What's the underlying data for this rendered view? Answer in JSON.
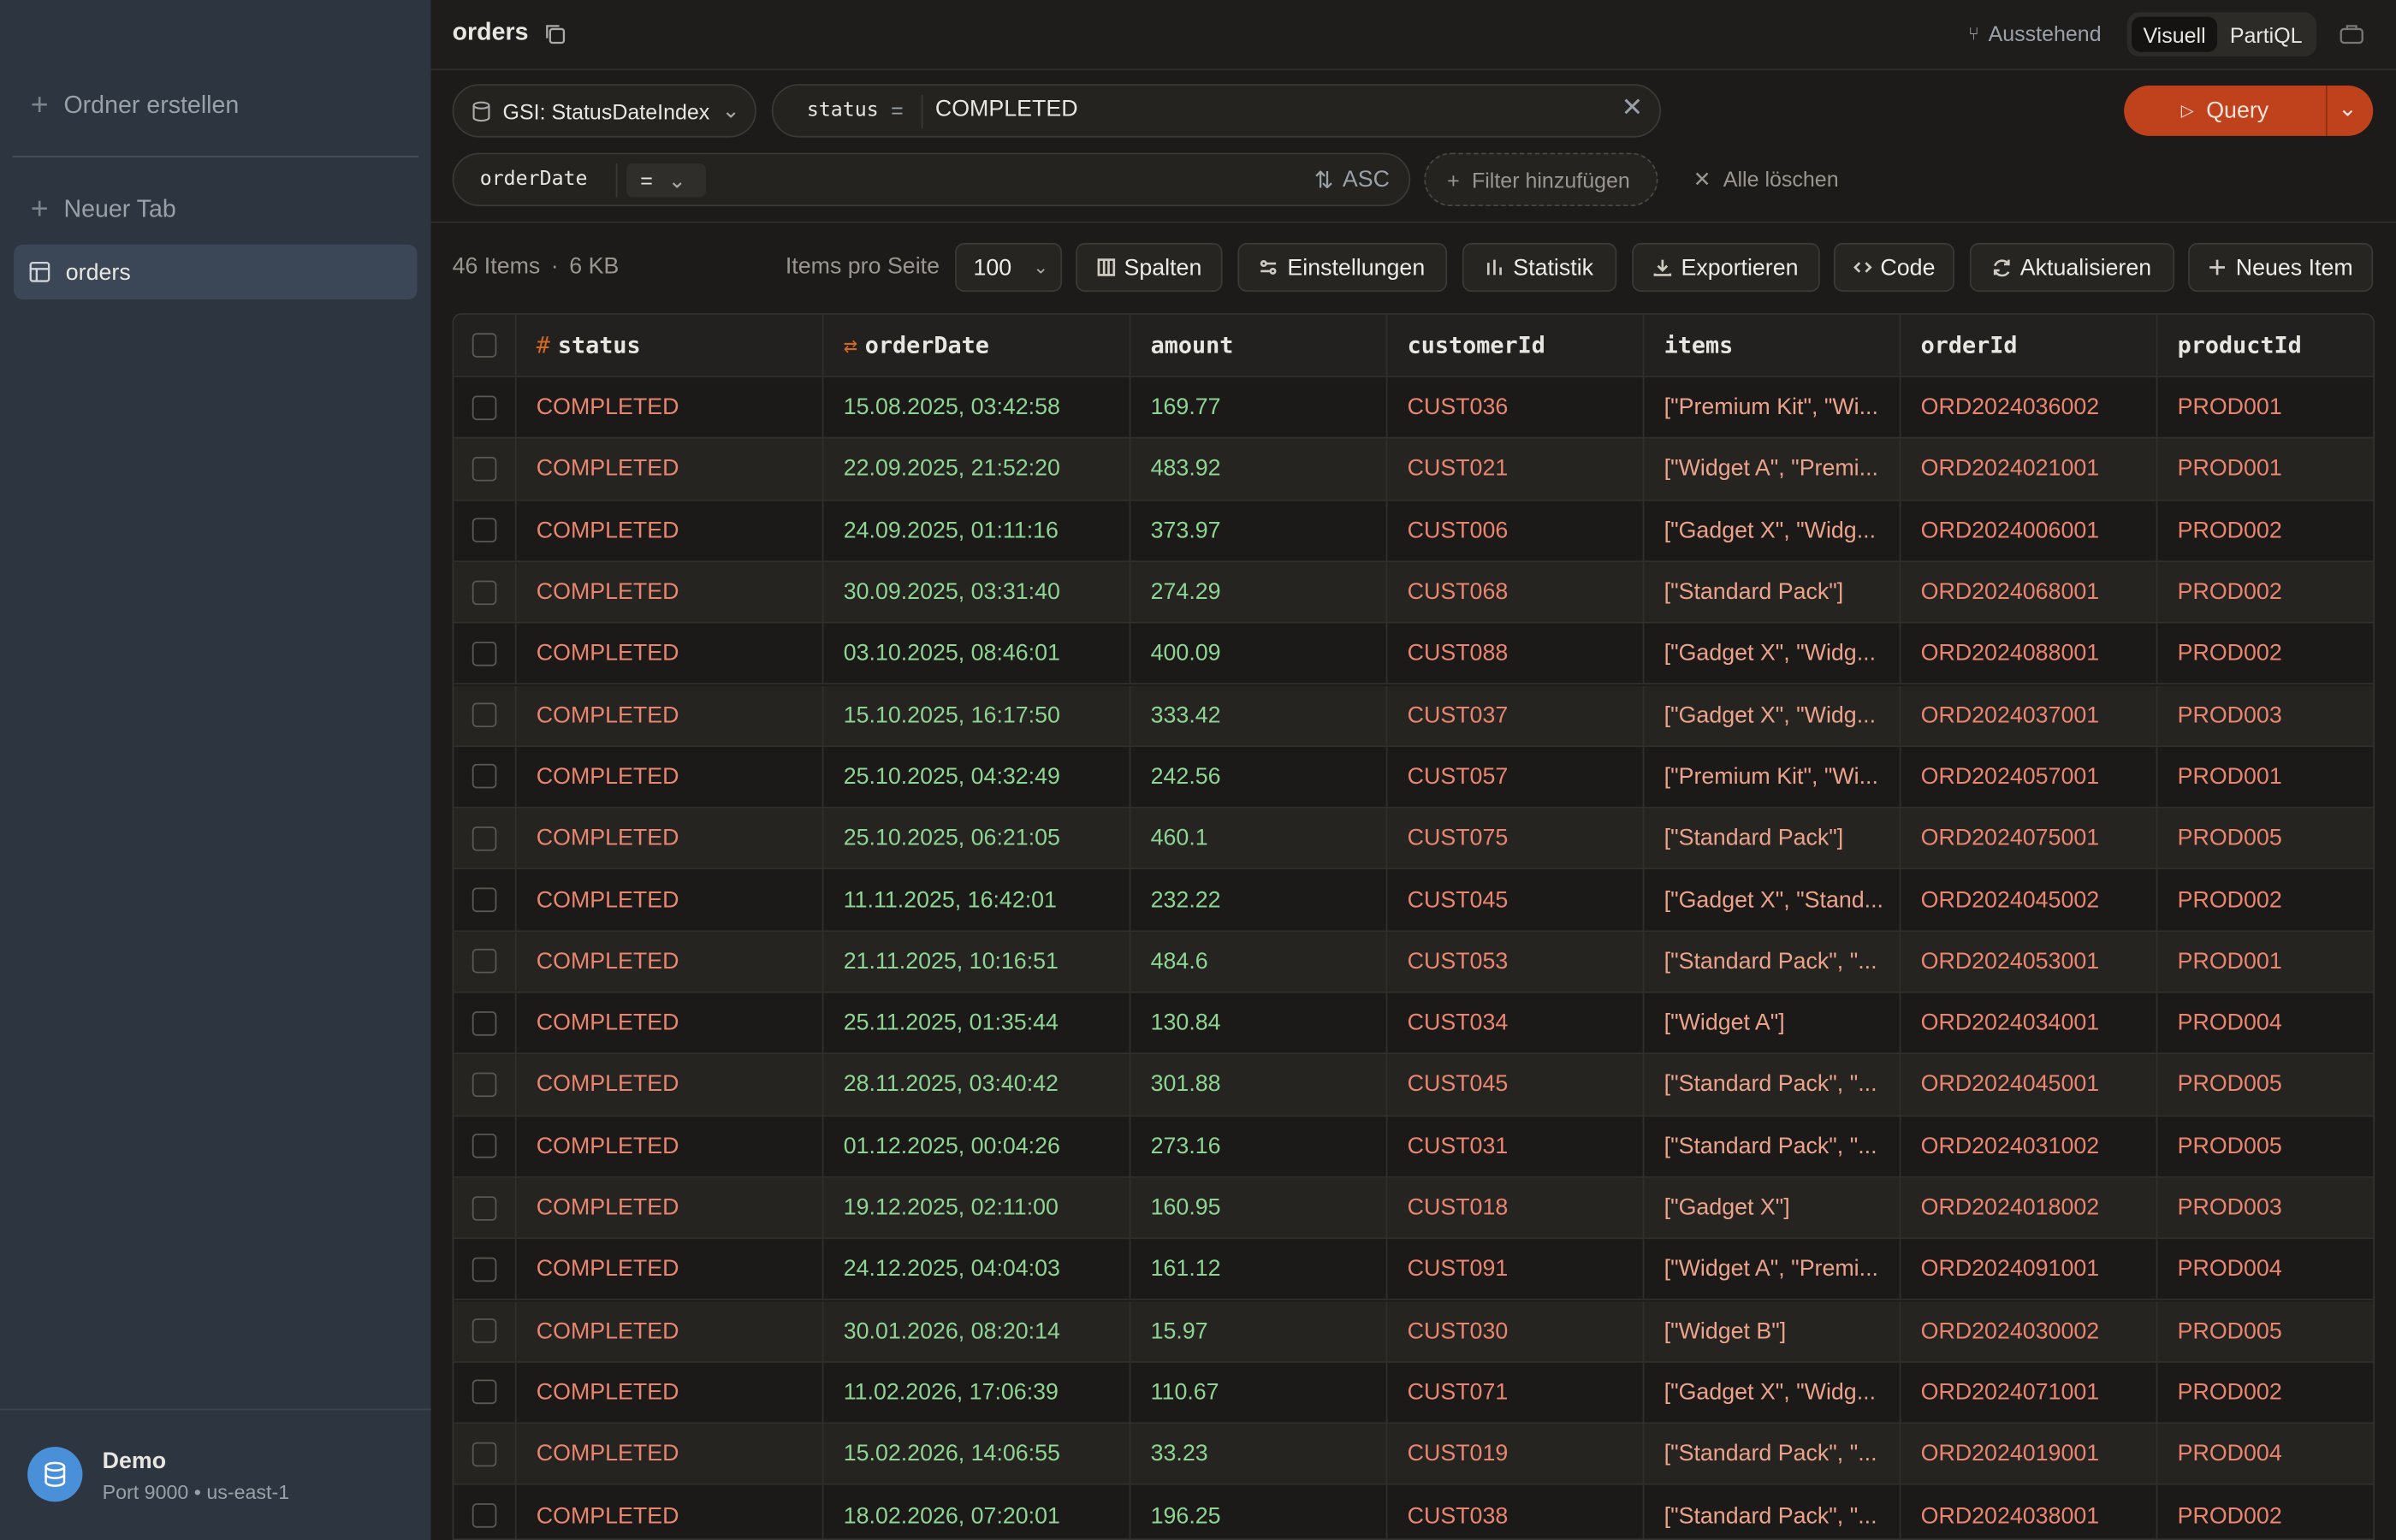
{
  "sidebar": {
    "create_folder": "Ordner erstellen",
    "new_tab": "Neuer Tab",
    "tabs": [
      "orders"
    ],
    "connection": {
      "name": "Demo",
      "details": "Port 9000 • us-east-1"
    }
  },
  "header": {
    "title": "orders",
    "status": "Ausstehend",
    "modes": [
      "Visuell",
      "PartiQL"
    ]
  },
  "query": {
    "index": "GSI: StatusDateIndex",
    "key": "status",
    "key_operator": "=",
    "key_value": "COMPLETED",
    "sort_key": "orderDate",
    "sort_operator": "=",
    "order": "ASC",
    "add_filter": "Filter hinzufügen",
    "clear_all": "Alle löschen",
    "run": "Query"
  },
  "toolbar": {
    "item_count": "46 Items",
    "separator": "·",
    "size": "6 KB",
    "page_size_label": "Items pro Seite",
    "page_size": "100",
    "buttons": [
      "Spalten",
      "Einstellungen",
      "Statistik",
      "Exportieren",
      "Code",
      "Aktualisieren",
      "Neues Item"
    ]
  },
  "table": {
    "columns": [
      "status",
      "orderDate",
      "amount",
      "customerId",
      "items",
      "orderId",
      "productId"
    ],
    "rows": [
      [
        "COMPLETED",
        "15.08.2025, 03:42:58",
        169.77,
        "CUST036",
        "[\"Premium Kit\", \"Wi...",
        "ORD2024036002",
        "PROD001"
      ],
      [
        "COMPLETED",
        "22.09.2025, 21:52:20",
        483.92,
        "CUST021",
        "[\"Widget A\", \"Premi...",
        "ORD2024021001",
        "PROD001"
      ],
      [
        "COMPLETED",
        "24.09.2025, 01:11:16",
        373.97,
        "CUST006",
        "[\"Gadget X\", \"Widg...",
        "ORD2024006001",
        "PROD002"
      ],
      [
        "COMPLETED",
        "30.09.2025, 03:31:40",
        274.29,
        "CUST068",
        "[\"Standard Pack\"]",
        "ORD2024068001",
        "PROD002"
      ],
      [
        "COMPLETED",
        "03.10.2025, 08:46:01",
        400.09,
        "CUST088",
        "[\"Gadget X\", \"Widg...",
        "ORD2024088001",
        "PROD002"
      ],
      [
        "COMPLETED",
        "15.10.2025, 16:17:50",
        333.42,
        "CUST037",
        "[\"Gadget X\", \"Widg...",
        "ORD2024037001",
        "PROD003"
      ],
      [
        "COMPLETED",
        "25.10.2025, 04:32:49",
        242.56,
        "CUST057",
        "[\"Premium Kit\", \"Wi...",
        "ORD2024057001",
        "PROD001"
      ],
      [
        "COMPLETED",
        "25.10.2025, 06:21:05",
        460.1,
        "CUST075",
        "[\"Standard Pack\"]",
        "ORD2024075001",
        "PROD005"
      ],
      [
        "COMPLETED",
        "11.11.2025, 16:42:01",
        232.22,
        "CUST045",
        "[\"Gadget X\", \"Stand...",
        "ORD2024045002",
        "PROD002"
      ],
      [
        "COMPLETED",
        "21.11.2025, 10:16:51",
        484.6,
        "CUST053",
        "[\"Standard Pack\", \"...",
        "ORD2024053001",
        "PROD001"
      ],
      [
        "COMPLETED",
        "25.11.2025, 01:35:44",
        130.84,
        "CUST034",
        "[\"Widget A\"]",
        "ORD2024034001",
        "PROD004"
      ],
      [
        "COMPLETED",
        "28.11.2025, 03:40:42",
        301.88,
        "CUST045",
        "[\"Standard Pack\", \"...",
        "ORD2024045001",
        "PROD005"
      ],
      [
        "COMPLETED",
        "01.12.2025, 00:04:26",
        273.16,
        "CUST031",
        "[\"Standard Pack\", \"...",
        "ORD2024031002",
        "PROD005"
      ],
      [
        "COMPLETED",
        "19.12.2025, 02:11:00",
        160.95,
        "CUST018",
        "[\"Gadget X\"]",
        "ORD2024018002",
        "PROD003"
      ],
      [
        "COMPLETED",
        "24.12.2025, 04:04:03",
        161.12,
        "CUST091",
        "[\"Widget A\", \"Premi...",
        "ORD2024091001",
        "PROD004"
      ],
      [
        "COMPLETED",
        "30.01.2026, 08:20:14",
        15.97,
        "CUST030",
        "[\"Widget B\"]",
        "ORD2024030002",
        "PROD005"
      ],
      [
        "COMPLETED",
        "11.02.2026, 17:06:39",
        110.67,
        "CUST071",
        "[\"Gadget X\", \"Widg...",
        "ORD2024071001",
        "PROD002"
      ],
      [
        "COMPLETED",
        "15.02.2026, 14:06:55",
        33.23,
        "CUST019",
        "[\"Standard Pack\", \"...",
        "ORD2024019001",
        "PROD004"
      ],
      [
        "COMPLETED",
        "18.02.2026, 07:20:01",
        196.25,
        "CUST038",
        "[\"Standard Pack\", \"...",
        "ORD2024038001",
        "PROD002"
      ]
    ]
  }
}
